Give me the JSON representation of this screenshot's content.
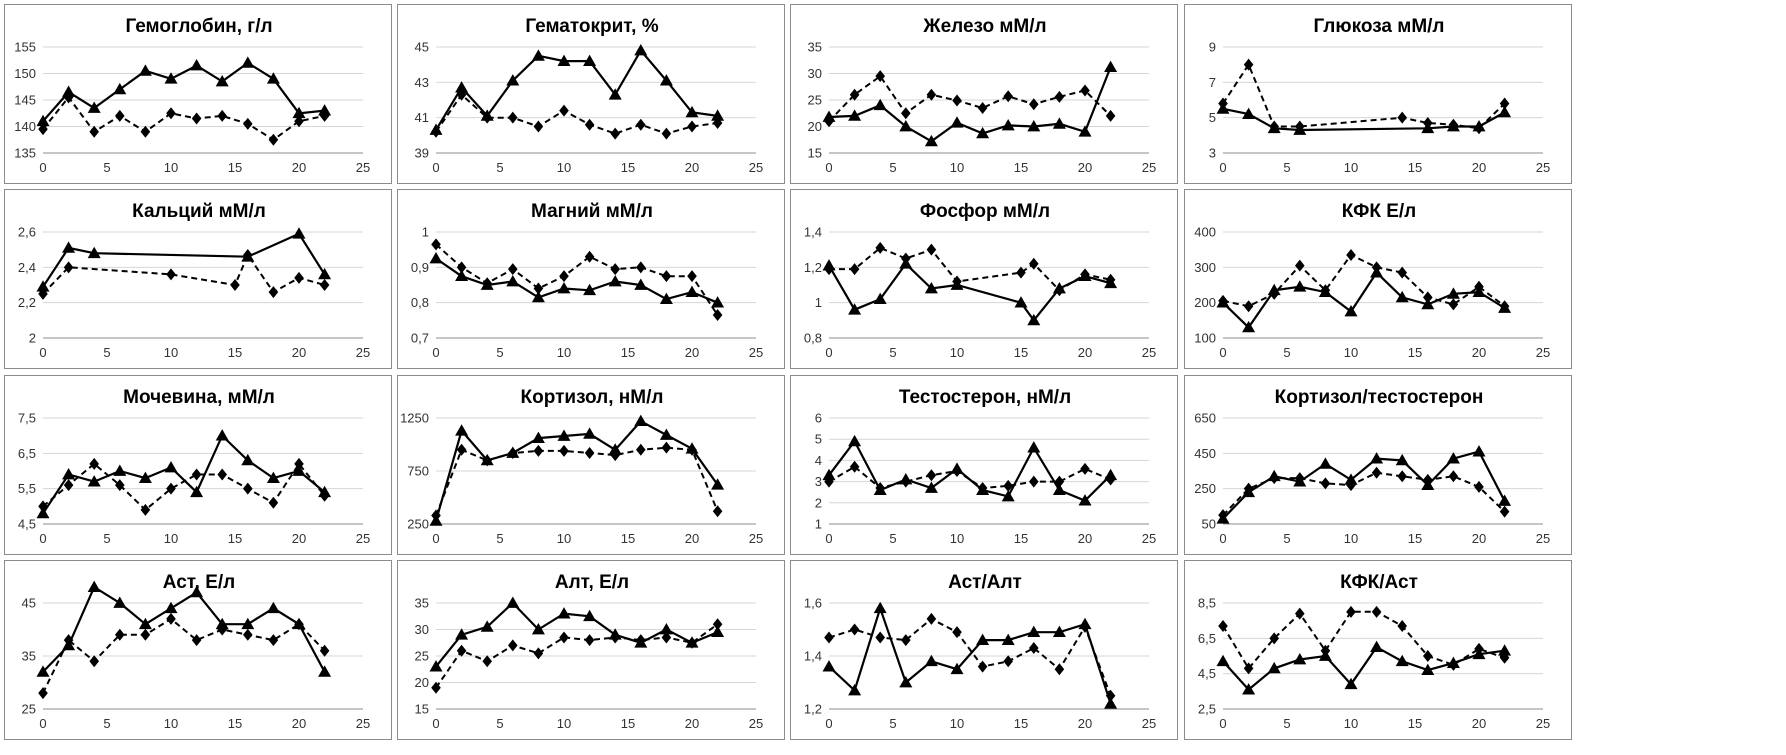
{
  "chart_data": [
    {
      "type": "line",
      "title": "Гемоглобин, г/л",
      "x": [
        0,
        2,
        4,
        6,
        8,
        10,
        12,
        14,
        16,
        18,
        20,
        22
      ],
      "ylim": [
        135,
        155
      ],
      "yticks": [
        "135",
        "140",
        "145",
        "150",
        "155"
      ],
      "xticks": [
        "0",
        "5",
        "10",
        "15",
        "20",
        "25"
      ],
      "series": [
        {
          "marker": "triangle",
          "style": "solid",
          "values": [
            141,
            146.5,
            143.5,
            147,
            150.5,
            149,
            151.5,
            148.5,
            152,
            149,
            142.5,
            143
          ]
        },
        {
          "marker": "diamond",
          "style": "dashed",
          "values": [
            139.5,
            145.5,
            139,
            142,
            139,
            142.5,
            141.5,
            142,
            140.5,
            137.5,
            141,
            142
          ]
        }
      ]
    },
    {
      "type": "line",
      "title": "Гематокрит, %",
      "x": [
        0,
        2,
        4,
        6,
        8,
        10,
        12,
        14,
        16,
        18,
        20,
        22
      ],
      "ylim": [
        39,
        45
      ],
      "yticks": [
        "39",
        "41",
        "43",
        "45"
      ],
      "xticks": [
        "0",
        "5",
        "10",
        "15",
        "20",
        "25"
      ],
      "series": [
        {
          "marker": "triangle",
          "style": "solid",
          "values": [
            40.3,
            42.7,
            41.1,
            43.1,
            44.5,
            44.2,
            44.2,
            42.3,
            44.8,
            43.1,
            41.3,
            41.1
          ]
        },
        {
          "marker": "diamond",
          "style": "dashed",
          "values": [
            40.2,
            42.3,
            41.0,
            41.0,
            40.5,
            41.4,
            40.6,
            40.1,
            40.6,
            40.1,
            40.5,
            40.7
          ]
        }
      ]
    },
    {
      "type": "line",
      "title": "Железо мМ/л",
      "x": [
        0,
        2,
        4,
        6,
        8,
        10,
        12,
        14,
        16,
        18,
        20,
        22
      ],
      "ylim": [
        15,
        35
      ],
      "yticks": [
        "15",
        "20",
        "25",
        "30",
        "35"
      ],
      "xticks": [
        "0",
        "5",
        "10",
        "15",
        "20",
        "25"
      ],
      "series": [
        {
          "marker": "triangle",
          "style": "solid",
          "values": [
            21.8,
            22,
            24,
            20,
            17.2,
            20.7,
            18.7,
            20.2,
            20,
            20.5,
            19,
            31.2
          ]
        },
        {
          "marker": "diamond",
          "style": "dashed",
          "values": [
            21,
            26,
            29.5,
            22.5,
            26,
            24.9,
            23.5,
            25.7,
            24.2,
            25.6,
            26.8,
            22
          ]
        }
      ]
    },
    {
      "type": "line",
      "title": "Глюкоза мМ/л",
      "x": [
        0,
        2,
        4,
        6,
        14,
        16,
        18,
        20,
        22
      ],
      "ylim": [
        3,
        9
      ],
      "yticks": [
        "3",
        "5",
        "7",
        "9"
      ],
      "xticks": [
        "0",
        "5",
        "10",
        "15",
        "20",
        "25"
      ],
      "series": [
        {
          "marker": "triangle",
          "style": "solid",
          "values": [
            5.5,
            5.2,
            4.4,
            4.3,
            null,
            4.4,
            4.5,
            4.5,
            5.3
          ]
        },
        {
          "marker": "diamond",
          "style": "dashed",
          "values": [
            5.8,
            8.0,
            4.5,
            4.5,
            5.0,
            4.7,
            4.6,
            4.4,
            5.8
          ]
        }
      ]
    },
    {
      "type": "line",
      "title": "Кальций мМ/л",
      "x": [
        0,
        2,
        4,
        10,
        15,
        16,
        18,
        20,
        22
      ],
      "ylim": [
        2,
        2.6
      ],
      "yticks": [
        "2",
        "2,2",
        "2,4",
        "2,6"
      ],
      "xticks": [
        "0",
        "5",
        "10",
        "15",
        "20",
        "25"
      ],
      "series": [
        {
          "marker": "triangle",
          "style": "solid",
          "values": [
            2.29,
            2.51,
            2.48,
            null,
            null,
            2.46,
            null,
            2.59,
            2.36
          ]
        },
        {
          "marker": "diamond",
          "style": "dashed",
          "values": [
            2.25,
            2.4,
            null,
            2.36,
            2.3,
            2.47,
            2.26,
            2.34,
            2.3
          ]
        }
      ]
    },
    {
      "type": "line",
      "title": "Магний мМ/л",
      "x": [
        0,
        2,
        4,
        6,
        8,
        10,
        12,
        14,
        16,
        18,
        20,
        22
      ],
      "ylim": [
        0.7,
        1
      ],
      "yticks": [
        "0,7",
        "0,8",
        "0,9",
        "1"
      ],
      "xticks": [
        "0",
        "5",
        "10",
        "15",
        "20",
        "25"
      ],
      "series": [
        {
          "marker": "triangle",
          "style": "solid",
          "values": [
            0.925,
            0.875,
            0.85,
            0.86,
            0.815,
            0.84,
            0.835,
            0.86,
            0.85,
            0.81,
            0.83,
            0.8
          ]
        },
        {
          "marker": "diamond",
          "style": "dashed",
          "values": [
            0.965,
            0.9,
            0.855,
            0.895,
            0.84,
            0.875,
            0.93,
            0.895,
            0.9,
            0.875,
            0.875,
            0.765
          ]
        }
      ]
    },
    {
      "type": "line",
      "title": "Фосфор мМ/л",
      "x": [
        0,
        2,
        4,
        6,
        8,
        10,
        15,
        16,
        18,
        20,
        22
      ],
      "ylim": [
        0.8,
        1.4
      ],
      "yticks": [
        "0,8",
        "1",
        "1,2",
        "1,4"
      ],
      "xticks": [
        "0",
        "5",
        "10",
        "15",
        "20",
        "25"
      ],
      "series": [
        {
          "marker": "triangle",
          "style": "solid",
          "values": [
            1.21,
            0.96,
            1.02,
            1.22,
            1.08,
            1.1,
            1.0,
            0.9,
            1.08,
            1.15,
            1.11
          ]
        },
        {
          "marker": "diamond",
          "style": "dashed",
          "values": [
            1.19,
            1.19,
            1.31,
            1.25,
            1.3,
            1.12,
            1.17,
            1.22,
            1.07,
            1.16,
            1.13
          ]
        }
      ]
    },
    {
      "type": "line",
      "title": "КФК Е/л",
      "x": [
        0,
        2,
        4,
        6,
        8,
        10,
        12,
        14,
        16,
        18,
        20,
        22
      ],
      "ylim": [
        100,
        400
      ],
      "yticks": [
        "100",
        "200",
        "300",
        "400"
      ],
      "xticks": [
        "0",
        "5",
        "10",
        "15",
        "20",
        "25"
      ],
      "series": [
        {
          "marker": "triangle",
          "style": "solid",
          "values": [
            200,
            130,
            235,
            245,
            230,
            175,
            285,
            215,
            195,
            225,
            230,
            185
          ]
        },
        {
          "marker": "diamond",
          "style": "dashed",
          "values": [
            205,
            190,
            225,
            305,
            235,
            335,
            300,
            285,
            215,
            195,
            245,
            190
          ]
        }
      ]
    },
    {
      "type": "line",
      "title": "Мочевина, мМ/л",
      "x": [
        0,
        2,
        4,
        6,
        8,
        10,
        12,
        14,
        16,
        18,
        20,
        22
      ],
      "ylim": [
        4.5,
        7.5
      ],
      "yticks": [
        "4,5",
        "5,5",
        "6,5",
        "7,5"
      ],
      "xticks": [
        "0",
        "5",
        "10",
        "15",
        "20",
        "25"
      ],
      "series": [
        {
          "marker": "triangle",
          "style": "solid",
          "values": [
            4.8,
            5.9,
            5.7,
            6.0,
            5.8,
            6.1,
            5.4,
            7.0,
            6.3,
            5.8,
            6.0,
            5.4
          ]
        },
        {
          "marker": "diamond",
          "style": "dashed",
          "values": [
            5.0,
            5.6,
            6.2,
            5.6,
            4.9,
            5.5,
            5.9,
            5.9,
            5.5,
            5.1,
            6.2,
            5.3
          ]
        }
      ]
    },
    {
      "type": "line",
      "title": "Кортизол, нМ/л",
      "x": [
        0,
        2,
        4,
        6,
        8,
        10,
        12,
        14,
        16,
        18,
        20,
        22
      ],
      "ylim": [
        250,
        1250
      ],
      "yticks": [
        "250",
        "750",
        "1250"
      ],
      "xticks": [
        "0",
        "5",
        "10",
        "15",
        "20",
        "25"
      ],
      "series": [
        {
          "marker": "triangle",
          "style": "solid",
          "values": [
            280,
            1130,
            850,
            920,
            1060,
            1080,
            1100,
            950,
            1220,
            1090,
            960,
            620
          ]
        },
        {
          "marker": "diamond",
          "style": "dashed",
          "values": [
            330,
            950,
            850,
            920,
            940,
            940,
            920,
            900,
            950,
            970,
            950,
            370
          ]
        }
      ]
    },
    {
      "type": "line",
      "title": "Тестостерон, нМ/л",
      "x": [
        0,
        2,
        4,
        6,
        8,
        10,
        12,
        14,
        16,
        18,
        20,
        22
      ],
      "ylim": [
        1,
        6
      ],
      "yticks": [
        "1",
        "2",
        "3",
        "4",
        "5",
        "6"
      ],
      "xticks": [
        "0",
        "5",
        "10",
        "15",
        "20",
        "25"
      ],
      "series": [
        {
          "marker": "triangle",
          "style": "solid",
          "values": [
            3.3,
            4.9,
            2.6,
            3.1,
            2.7,
            3.6,
            2.6,
            2.3,
            4.6,
            2.6,
            2.1,
            3.3
          ]
        },
        {
          "marker": "diamond",
          "style": "dashed",
          "values": [
            3.0,
            3.7,
            2.7,
            3.0,
            3.3,
            3.5,
            2.7,
            2.8,
            3.0,
            3.0,
            3.6,
            3.1
          ]
        }
      ]
    },
    {
      "type": "line",
      "title": "Кортизол/тестостерон",
      "x": [
        0,
        2,
        4,
        6,
        8,
        10,
        12,
        14,
        16,
        18,
        20,
        22
      ],
      "ylim": [
        50,
        650
      ],
      "yticks": [
        "50",
        "250",
        "450",
        "650"
      ],
      "xticks": [
        "0",
        "5",
        "10",
        "15",
        "20",
        "25"
      ],
      "series": [
        {
          "marker": "triangle",
          "style": "solid",
          "values": [
            80,
            230,
            320,
            290,
            390,
            300,
            420,
            410,
            270,
            420,
            460,
            180
          ]
        },
        {
          "marker": "diamond",
          "style": "dashed",
          "values": [
            100,
            250,
            310,
            310,
            280,
            270,
            340,
            320,
            300,
            320,
            260,
            120
          ]
        }
      ]
    },
    {
      "type": "line",
      "title": "Аст, Е/л",
      "x": [
        0,
        2,
        4,
        6,
        8,
        10,
        12,
        14,
        16,
        18,
        20,
        22
      ],
      "ylim": [
        25,
        45
      ],
      "yticks": [
        "25",
        "35",
        "45"
      ],
      "xticks": [
        "0",
        "5",
        "10",
        "15",
        "20",
        "25"
      ],
      "series": [
        {
          "marker": "triangle",
          "style": "solid",
          "values": [
            32,
            37,
            48,
            45,
            41,
            44,
            47,
            41,
            41,
            44,
            41,
            32
          ]
        },
        {
          "marker": "diamond",
          "style": "dashed",
          "values": [
            28,
            38,
            34,
            39,
            39,
            42,
            38,
            40,
            39,
            38,
            41,
            36
          ]
        }
      ]
    },
    {
      "type": "line",
      "title": "Алт, Е/л",
      "x": [
        0,
        2,
        4,
        6,
        8,
        10,
        12,
        14,
        16,
        18,
        20,
        22
      ],
      "ylim": [
        15,
        35
      ],
      "yticks": [
        "15",
        "20",
        "25",
        "30",
        "35"
      ],
      "xticks": [
        "0",
        "5",
        "10",
        "15",
        "20",
        "25"
      ],
      "series": [
        {
          "marker": "triangle",
          "style": "solid",
          "values": [
            23,
            29,
            30.5,
            35,
            30,
            33,
            32.5,
            29,
            27.5,
            30,
            27.5,
            29.5
          ]
        },
        {
          "marker": "diamond",
          "style": "dashed",
          "values": [
            19,
            26,
            24,
            27,
            25.5,
            28.5,
            28,
            28.5,
            28,
            28.5,
            27.5,
            31
          ]
        }
      ]
    },
    {
      "type": "line",
      "title": "Аст/Алт",
      "x": [
        0,
        2,
        4,
        6,
        8,
        10,
        12,
        14,
        16,
        18,
        20,
        22
      ],
      "ylim": [
        1.2,
        1.6
      ],
      "yticks": [
        "1,2",
        "1,4",
        "1,6"
      ],
      "xticks": [
        "0",
        "5",
        "10",
        "15",
        "20",
        "25"
      ],
      "series": [
        {
          "marker": "triangle",
          "style": "solid",
          "values": [
            1.36,
            1.27,
            1.58,
            1.3,
            1.38,
            1.35,
            1.46,
            1.46,
            1.49,
            1.49,
            1.52,
            1.22
          ]
        },
        {
          "marker": "diamond",
          "style": "dashed",
          "values": [
            1.47,
            1.5,
            1.47,
            1.46,
            1.54,
            1.49,
            1.36,
            1.38,
            1.43,
            1.35,
            1.51,
            1.25
          ]
        }
      ]
    },
    {
      "type": "line",
      "title": "КФК/Аст",
      "x": [
        0,
        2,
        4,
        6,
        8,
        10,
        12,
        14,
        16,
        18,
        20,
        22
      ],
      "ylim": [
        2.5,
        8.5
      ],
      "yticks": [
        "2,5",
        "4,5",
        "6,5",
        "8,5"
      ],
      "xticks": [
        "0",
        "5",
        "10",
        "15",
        "20",
        "25"
      ],
      "series": [
        {
          "marker": "triangle",
          "style": "solid",
          "values": [
            5.2,
            3.6,
            4.8,
            5.3,
            5.5,
            3.9,
            6.0,
            5.2,
            4.7,
            5.1,
            5.6,
            5.8
          ]
        },
        {
          "marker": "diamond",
          "style": "dashed",
          "values": [
            7.2,
            4.8,
            6.5,
            7.9,
            5.8,
            8.0,
            8.0,
            7.2,
            5.5,
            5.0,
            5.9,
            5.4
          ]
        }
      ]
    }
  ]
}
